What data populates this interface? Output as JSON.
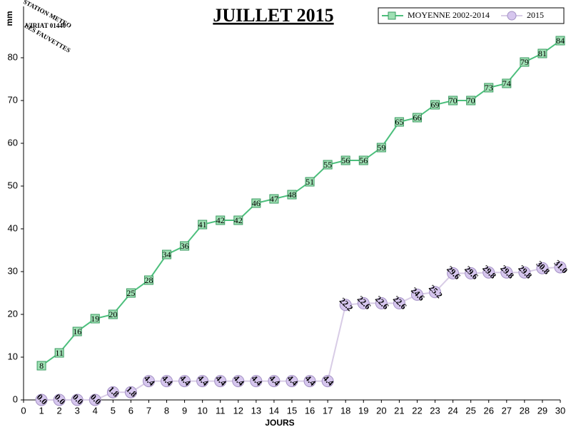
{
  "chart_data": {
    "type": "line",
    "title": "JUILLET 2015",
    "ylabel": "mm",
    "xlabel": "JOURS",
    "x": [
      1,
      2,
      3,
      4,
      5,
      6,
      7,
      8,
      9,
      10,
      11,
      12,
      13,
      14,
      15,
      16,
      17,
      18,
      19,
      20,
      21,
      22,
      23,
      24,
      25,
      26,
      27,
      28,
      29,
      30
    ],
    "series": [
      {
        "name": "MOYENNE 2002-2014",
        "color": "#4cbf7c",
        "marker": "square",
        "values": [
          8,
          11,
          16,
          19,
          20,
          25,
          28,
          34,
          36,
          41,
          42,
          42,
          46,
          47,
          48,
          51,
          55,
          56,
          56,
          59,
          65,
          66,
          69,
          70,
          70,
          73,
          74,
          79,
          81,
          84
        ]
      },
      {
        "name": "2015",
        "color": "#d8cce6",
        "marker": "circle",
        "values": [
          0,
          0,
          0,
          0,
          1.8,
          1.8,
          4.4,
          4.4,
          4.4,
          4.4,
          4.4,
          4.4,
          4.4,
          4.4,
          4.4,
          4.4,
          4.4,
          22.2,
          22.6,
          22.6,
          22.6,
          24.6,
          25.2,
          29.6,
          29.6,
          29.8,
          29.8,
          29.8,
          30.8,
          31
        ],
        "value_labels": [
          "0.0",
          "0.0",
          "0.0",
          "0.0",
          "1.8",
          "1.8",
          "4.4",
          "4.4",
          "4.4",
          "4.4",
          "4.4",
          "4.4",
          "4.4",
          "4.4",
          "4.4",
          "4.4",
          "4.4",
          "22.2",
          "22.6",
          "22.6",
          "22.6",
          "24.6",
          "25.2",
          "29.6",
          "29.6",
          "29.8",
          "29.8",
          "29.8",
          "30.8",
          "31.0"
        ]
      }
    ],
    "xlim": [
      0,
      30
    ],
    "xticks": [
      0,
      1,
      2,
      3,
      4,
      5,
      6,
      7,
      8,
      9,
      10,
      11,
      12,
      13,
      14,
      15,
      16,
      17,
      18,
      19,
      20,
      21,
      22,
      23,
      24,
      25,
      26,
      27,
      28,
      29,
      30
    ],
    "ylim": [
      0,
      92
    ],
    "yticks": [
      0,
      10,
      20,
      30,
      40,
      50,
      60,
      70,
      80
    ],
    "grid": false,
    "legend": "top-right"
  },
  "logo": {
    "lines": [
      "STATION METEO",
      "VIRIAT 01440",
      "LES FAUVETTES"
    ]
  }
}
